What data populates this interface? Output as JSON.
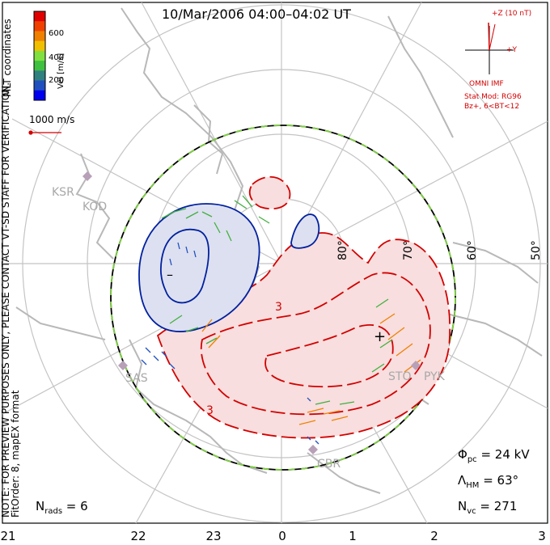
{
  "title": "10/Mar/2006 04:00–04:02 UT",
  "colorbar": {
    "label": "Vel [m/s]",
    "ticks": [
      "600",
      "400",
      "200"
    ],
    "colors": [
      "#e00000",
      "#f04000",
      "#f08000",
      "#f0c000",
      "#80e040",
      "#40c040",
      "#308080",
      "#2050c0",
      "#0000f0"
    ]
  },
  "mlt_label": "MLT coordinates",
  "vector_scale": "1000 m/s",
  "note_line1": "NOTE: FOR PREVIEW PURPOSES ONLY, PLEASE CONTACT VT-SD STAFF FOR VERIFICATION.",
  "note_line2": "FitOrder: 8, mapEX format",
  "imf": {
    "z_label": "+Z (10 nT)",
    "y_label": "+Y",
    "source": "OMNI IMF",
    "model": "Stat Mod: RG96",
    "condition": "Bz+, 6<BT<12"
  },
  "stations": [
    "KSR",
    "KOD",
    "SAS",
    "STO",
    "PYK",
    "CBR"
  ],
  "lat_labels": [
    "80°",
    "70°",
    "60°",
    "50°"
  ],
  "mlt_ticks": [
    "21",
    "22",
    "23",
    "0",
    "1",
    "2",
    "3"
  ],
  "stats": {
    "phi_pc": "Φ",
    "phi_pc_sub": "pc",
    "phi_pc_value": " = 24 kV",
    "lambda_hm": "Λ",
    "lambda_hm_sub": "HM",
    "lambda_hm_value": " = 63°",
    "n_vc": "N",
    "n_vc_sub": "vc",
    "n_vc_value": " = 271",
    "n_rads": "N",
    "n_rads_sub": "rads",
    "n_rads_value": " = 6"
  },
  "markers": {
    "min": "–",
    "max": "+",
    "contour_label": "3"
  },
  "colors": {
    "positive": "#f8dede",
    "negative": "#dde0f0",
    "pos_line": "#d40000",
    "neg_line": "#0020a0",
    "coast": "#b8b8b8"
  }
}
